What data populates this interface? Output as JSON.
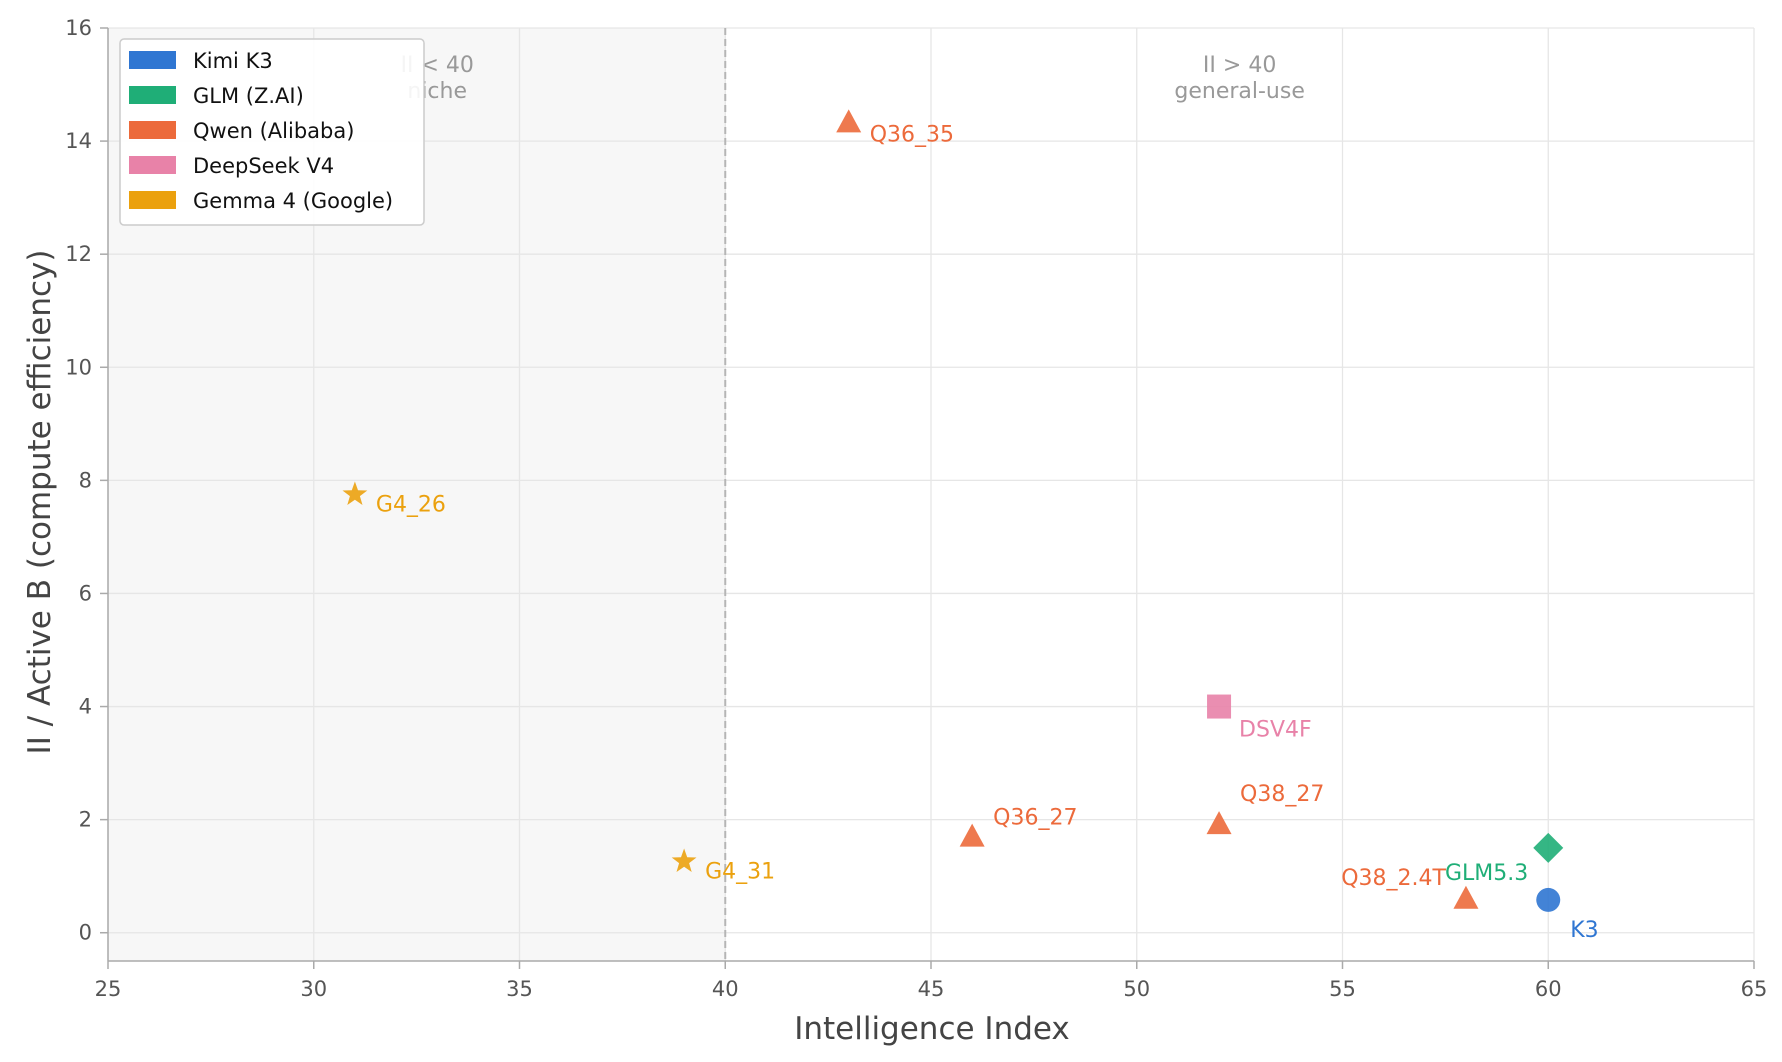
{
  "chart_data": {
    "type": "scatter",
    "xlabel": "Intelligence Index",
    "ylabel": "II / Active B (compute efficiency)",
    "xlim": [
      25,
      65
    ],
    "ylim": [
      -0.5,
      16
    ],
    "xticks": [
      25,
      30,
      35,
      40,
      45,
      50,
      55,
      60,
      65
    ],
    "yticks": [
      0,
      2,
      4,
      6,
      8,
      10,
      12,
      14,
      16
    ],
    "grid": true,
    "legend_position": "top-left",
    "threshold_x": 40,
    "regions": [
      {
        "name": "niche",
        "label_lines": [
          "II < 40",
          "niche"
        ],
        "x_range": [
          25,
          40
        ],
        "label_x": 33,
        "shade": "#f7f7f7"
      },
      {
        "name": "general-use",
        "label_lines": [
          "II > 40",
          "general-use"
        ],
        "x_range": [
          40,
          65
        ],
        "label_x": 52.5,
        "shade": ""
      }
    ],
    "series": [
      {
        "name": "Kimi K3",
        "color": "#2f76d2",
        "marker": "circle",
        "points": [
          {
            "label": "K3",
            "x": 60,
            "y": 0.58
          }
        ]
      },
      {
        "name": "GLM (Z.AI)",
        "color": "#1fae77",
        "marker": "diamond",
        "points": [
          {
            "label": "GLM5.3",
            "x": 60,
            "y": 1.5
          }
        ]
      },
      {
        "name": "Qwen (Alibaba)",
        "color": "#ec6a3b",
        "marker": "triangle",
        "points": [
          {
            "label": "Q36_35",
            "x": 43,
            "y": 14.33
          },
          {
            "label": "Q36_27",
            "x": 46,
            "y": 1.7
          },
          {
            "label": "Q38_27",
            "x": 52,
            "y": 1.92
          },
          {
            "label": "Q38_2.4T",
            "x": 58,
            "y": 0.6
          }
        ]
      },
      {
        "name": "DeepSeek V4",
        "color": "#e882a8",
        "marker": "square",
        "points": [
          {
            "label": "DSV4F",
            "x": 52,
            "y": 4.0
          }
        ]
      },
      {
        "name": "Gemma 4 (Google)",
        "color": "#eba10e",
        "marker": "star",
        "points": [
          {
            "label": "G4_26",
            "x": 31,
            "y": 7.75
          },
          {
            "label": "G4_31",
            "x": 39,
            "y": 1.26
          }
        ]
      }
    ]
  }
}
